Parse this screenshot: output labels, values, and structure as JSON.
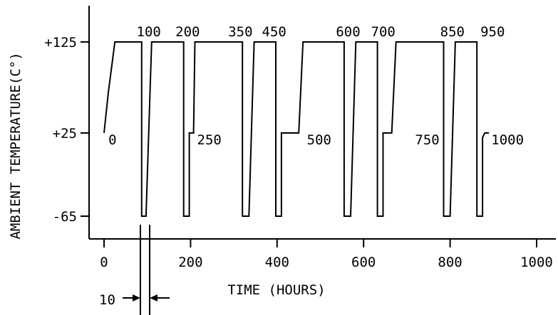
{
  "chart_data": {
    "type": "line",
    "xlabel": "TIME (HOURS)",
    "ylabel": "AMBIENT TEMPERATURE(C°)",
    "xlim": [
      0,
      1000
    ],
    "ylim": [
      -65,
      125
    ],
    "x_ticks": [
      {
        "value": 0,
        "label": "0"
      },
      {
        "value": 200,
        "label": "200"
      },
      {
        "value": 400,
        "label": "400"
      },
      {
        "value": 600,
        "label": "600"
      },
      {
        "value": 800,
        "label": "800"
      },
      {
        "value": 1000,
        "label": "1000"
      }
    ],
    "y_ticks": [
      {
        "value": 125,
        "label": "+125"
      },
      {
        "value": 25,
        "label": "+25"
      },
      {
        "value": -65,
        "label": "-65"
      }
    ],
    "series": [
      {
        "x": [
          0,
          10,
          25,
          37,
          87,
          87,
          97,
          97,
          110,
          122,
          184,
          184,
          197,
          197,
          207,
          210,
          250,
          320,
          320,
          335,
          335,
          347,
          397,
          397,
          410,
          410,
          450,
          460,
          485,
          555,
          555,
          570,
          570,
          582,
          632,
          632,
          645,
          645,
          665,
          675,
          715,
          785,
          785,
          800,
          800,
          812,
          862,
          862,
          875,
          875,
          880,
          890
        ],
        "y": [
          25,
          70,
          125,
          125,
          125,
          -65,
          -65,
          -65,
          125,
          125,
          125,
          -65,
          -65,
          25,
          25,
          125,
          125,
          125,
          -65,
          -65,
          -65,
          125,
          125,
          -65,
          -65,
          25,
          25,
          125,
          125,
          125,
          -65,
          -65,
          -65,
          125,
          125,
          -65,
          -65,
          25,
          25,
          125,
          125,
          125,
          -65,
          -65,
          -65,
          125,
          125,
          -65,
          -65,
          20,
          25,
          25
        ]
      }
    ],
    "annotations": [
      {
        "text": "0",
        "x": 10,
        "y": 25,
        "anchor": "start"
      },
      {
        "text": "100",
        "x": 75,
        "y": 125,
        "anchor": "start"
      },
      {
        "text": "200",
        "x": 165,
        "y": 125,
        "anchor": "start"
      },
      {
        "text": "250",
        "x": 215,
        "y": 25,
        "anchor": "start"
      },
      {
        "text": "350",
        "x": 287,
        "y": 125,
        "anchor": "start"
      },
      {
        "text": "450",
        "x": 365,
        "y": 125,
        "anchor": "start"
      },
      {
        "text": "500",
        "x": 469,
        "y": 25,
        "anchor": "start"
      },
      {
        "text": "600",
        "x": 536,
        "y": 125,
        "anchor": "start"
      },
      {
        "text": "700",
        "x": 617,
        "y": 125,
        "anchor": "start"
      },
      {
        "text": "750",
        "x": 719,
        "y": 25,
        "anchor": "start"
      },
      {
        "text": "850",
        "x": 777,
        "y": 125,
        "anchor": "start"
      },
      {
        "text": "950",
        "x": 870,
        "y": 125,
        "anchor": "start"
      },
      {
        "text": "1000",
        "x": 895,
        "y": 25,
        "anchor": "start"
      }
    ],
    "dimension_marker": {
      "label": "10",
      "x_start": 87,
      "x_end": 97
    },
    "grid": false
  }
}
